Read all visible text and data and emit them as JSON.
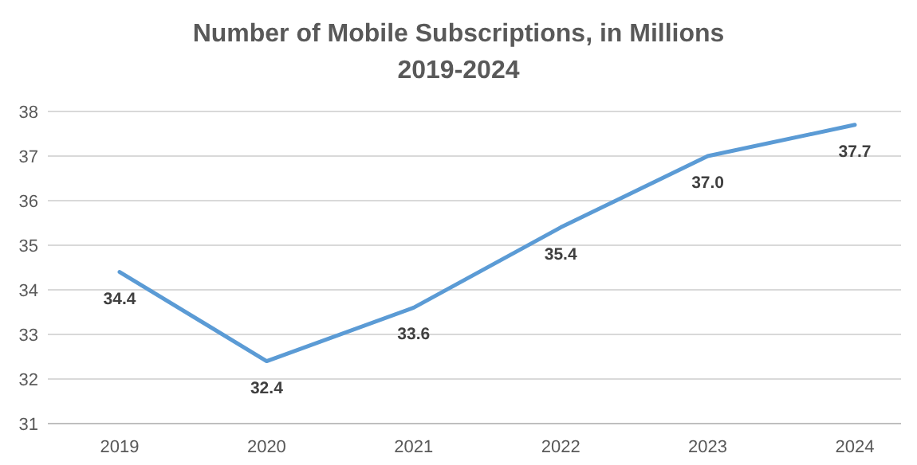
{
  "chart_data": {
    "type": "line",
    "title": "Number of Mobile Subscriptions, in Millions",
    "subtitle": "2019-2024",
    "categories": [
      "2019",
      "2020",
      "2021",
      "2022",
      "2023",
      "2024"
    ],
    "series": [
      {
        "color": "#5b9bd5",
        "values": [
          34.4,
          32.4,
          33.6,
          35.4,
          37.0,
          37.7
        ],
        "value_labels": [
          "34.4",
          "32.4",
          "33.6",
          "35.4",
          "37.0",
          "37.7"
        ]
      }
    ],
    "ylim": [
      31,
      38
    ],
    "yticks": [
      31,
      32,
      33,
      34,
      35,
      36,
      37,
      38
    ],
    "grid": "y",
    "marker": "none",
    "line_style": "solid"
  }
}
